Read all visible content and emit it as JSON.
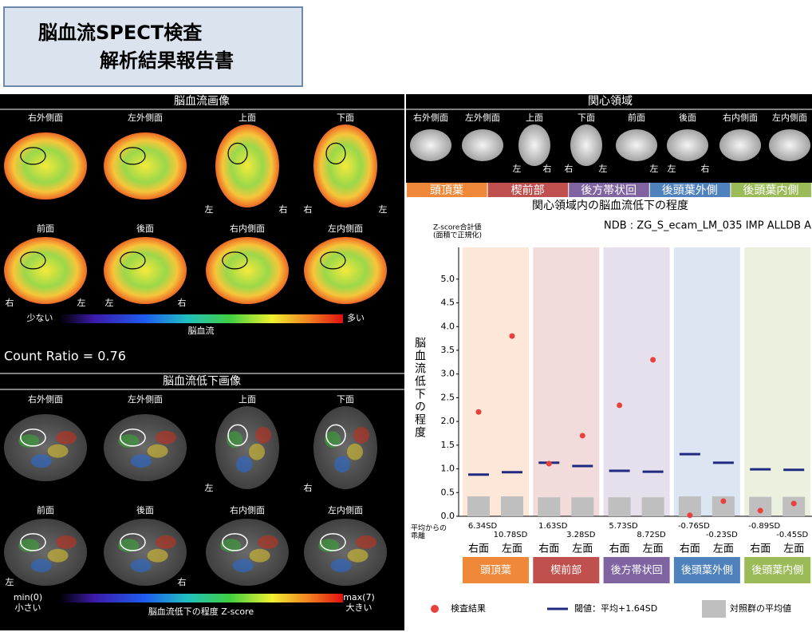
{
  "header": {
    "title_line1": "脳血流SPECT検査",
    "title_line2": "解析結果報告書"
  },
  "perfusion": {
    "heading": "脳血流画像",
    "views": [
      "右外側面",
      "左外側面",
      "上面",
      "下面",
      "前面",
      "後面",
      "右内側面",
      "左内側面"
    ],
    "orientation": [
      "左",
      "右",
      "右",
      "左",
      "右",
      "左",
      "左",
      "右"
    ],
    "colorbar_low": "少ない",
    "colorbar_high": "多い",
    "colorbar_label": "脳血流",
    "count_ratio": "Count Ratio = 0.76"
  },
  "decrease": {
    "heading": "脳血流低下画像",
    "views": [
      "右外側面",
      "左外側面",
      "上面",
      "下面",
      "前面",
      "後面",
      "右内側面",
      "左内側面"
    ],
    "orientation": [
      "左",
      "右",
      "左",
      "右"
    ],
    "min_label": "min(0)",
    "min_text": "小さい",
    "max_label": "max(7)",
    "max_text": "大きい",
    "colorbar_label": "脳血流低下の程度  Z-score"
  },
  "roi": {
    "heading": "関心領域",
    "views": [
      "右外側面",
      "左外側面",
      "上面",
      "下面",
      "前面",
      "後面",
      "右内側面",
      "左内側面"
    ],
    "orientation": [
      "左",
      "右",
      "右",
      "左",
      "左",
      "左",
      "右"
    ]
  },
  "chart_data": {
    "type": "dot",
    "title": "関心領域内の脳血流低下の程度",
    "subtitle": "NDB : ZG_S_ecam_LM_035 IMP ALLDB A",
    "y_label": "脳血流低下の程度",
    "y_note": [
      "Z-score合計値",
      "(面積で正規化)"
    ],
    "deviation_title": [
      "平均からの",
      "乖離"
    ],
    "groups": [
      {
        "name": "頭頂葉",
        "color": "#f0883a"
      },
      {
        "name": "楔前部",
        "color": "#c0504d"
      },
      {
        "name": "後方帯状回",
        "color": "#8064a2"
      },
      {
        "name": "後頭葉外側",
        "color": "#4f81bd"
      },
      {
        "name": "後頭葉内側",
        "color": "#9bbb59"
      }
    ],
    "categories": [
      "右面",
      "左面",
      "右面",
      "左面",
      "右面",
      "左面",
      "右面",
      "左面",
      "右面",
      "左面"
    ],
    "deviation_labels": [
      "6.34SD",
      "10.78SD",
      "1.63SD",
      "3.28SD",
      "5.73SD",
      "8.72SD",
      "-0.76SD",
      "-0.23SD",
      "-0.89SD",
      "-0.45SD"
    ],
    "series": [
      {
        "name": "検査結果",
        "mark": "dot",
        "color": "#e8413c",
        "values": [
          2.2,
          3.8,
          1.11,
          1.7,
          2.34,
          3.3,
          0.02,
          0.32,
          0.12,
          0.27
        ]
      },
      {
        "name": "閾値：平均+1.64SD",
        "mark": "dash",
        "color": "#1f2a80",
        "values": [
          0.88,
          0.93,
          1.13,
          1.06,
          0.96,
          0.94,
          1.31,
          1.13,
          0.99,
          0.98
        ]
      },
      {
        "name": "対照群の平均値",
        "mark": "bar",
        "color": "#bfbfbf",
        "values": [
          0.42,
          0.42,
          0.4,
          0.4,
          0.4,
          0.4,
          0.42,
          0.42,
          0.41,
          0.41
        ]
      }
    ],
    "ylim": [
      0,
      5.67
    ],
    "yticks": [
      {
        "value": 0,
        "label": "0.0"
      },
      {
        "value": 0.5,
        "label": "0.5"
      },
      {
        "value": 1,
        "label": "1.0"
      },
      {
        "value": 1.5,
        "label": "1.5"
      },
      {
        "value": 2,
        "label": "2.0"
      },
      {
        "value": 2.5,
        "label": "2.5"
      },
      {
        "value": 3,
        "label": "3.0"
      },
      {
        "value": 3.5,
        "label": "3.5"
      },
      {
        "value": 4,
        "label": "4.0"
      },
      {
        "value": 4.5,
        "label": "4.5"
      },
      {
        "value": 5,
        "label": "5.0"
      }
    ]
  }
}
